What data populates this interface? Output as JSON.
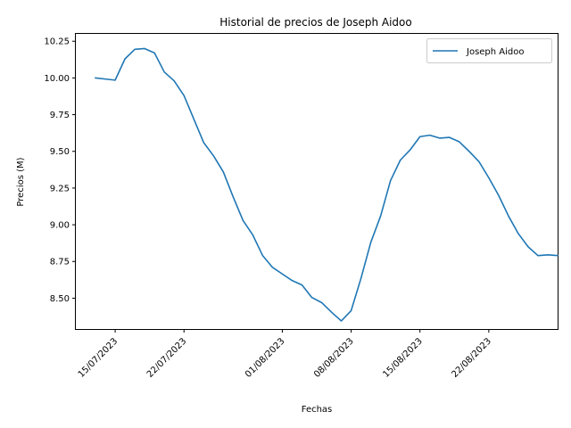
{
  "chart_data": {
    "type": "line",
    "title": "Historial de precios de Joseph Aidoo",
    "xlabel": "Fechas",
    "ylabel": "Precios (M)",
    "x_tick_labels": [
      "15/07/2023",
      "22/07/2023",
      "01/08/2023",
      "08/08/2023",
      "15/08/2023",
      "22/08/2023"
    ],
    "x_tick_dates": [
      "2023-07-15",
      "2023-07-22",
      "2023-08-01",
      "2023-08-08",
      "2023-08-15",
      "2023-08-22"
    ],
    "y_tick_labels": [
      "8.50",
      "8.75",
      "9.00",
      "9.25",
      "9.50",
      "9.75",
      "10.00",
      "10.25"
    ],
    "y_ticks": [
      8.5,
      8.75,
      9.0,
      9.25,
      9.5,
      9.75,
      10.0,
      10.25
    ],
    "xlim": [
      "2023-07-11",
      "2023-08-29"
    ],
    "ylim": [
      8.29,
      10.3
    ],
    "legend_position": "top-right",
    "grid": false,
    "series": [
      {
        "name": "Joseph Aidoo",
        "color": "#1f77b4",
        "x": [
          "2023-07-13",
          "2023-07-15",
          "2023-07-16",
          "2023-07-17",
          "2023-07-18",
          "2023-07-19",
          "2023-07-20",
          "2023-07-21",
          "2023-07-22",
          "2023-07-23",
          "2023-07-24",
          "2023-07-25",
          "2023-07-26",
          "2023-07-27",
          "2023-07-28",
          "2023-07-29",
          "2023-07-30",
          "2023-07-31",
          "2023-08-01",
          "2023-08-02",
          "2023-08-03",
          "2023-08-04",
          "2023-08-05",
          "2023-08-06",
          "2023-08-07",
          "2023-08-08",
          "2023-08-09",
          "2023-08-10",
          "2023-08-11",
          "2023-08-12",
          "2023-08-13",
          "2023-08-14",
          "2023-08-15",
          "2023-08-16",
          "2023-08-17",
          "2023-08-18",
          "2023-08-19",
          "2023-08-20",
          "2023-08-21",
          "2023-08-22",
          "2023-08-23",
          "2023-08-24",
          "2023-08-25",
          "2023-08-26",
          "2023-08-27",
          "2023-08-28",
          "2023-08-29"
        ],
        "y": [
          10.0,
          9.985,
          10.13,
          10.195,
          10.2,
          10.17,
          10.04,
          9.98,
          9.88,
          9.72,
          9.56,
          9.47,
          9.36,
          9.19,
          9.03,
          8.93,
          8.79,
          8.71,
          8.665,
          8.62,
          8.59,
          8.505,
          8.47,
          8.405,
          8.345,
          8.415,
          8.635,
          8.88,
          9.06,
          9.3,
          9.44,
          9.51,
          9.6,
          9.61,
          9.59,
          9.595,
          9.565,
          9.5,
          9.43,
          9.32,
          9.2,
          9.06,
          8.94,
          8.85,
          8.79,
          8.795,
          8.79
        ]
      }
    ]
  }
}
